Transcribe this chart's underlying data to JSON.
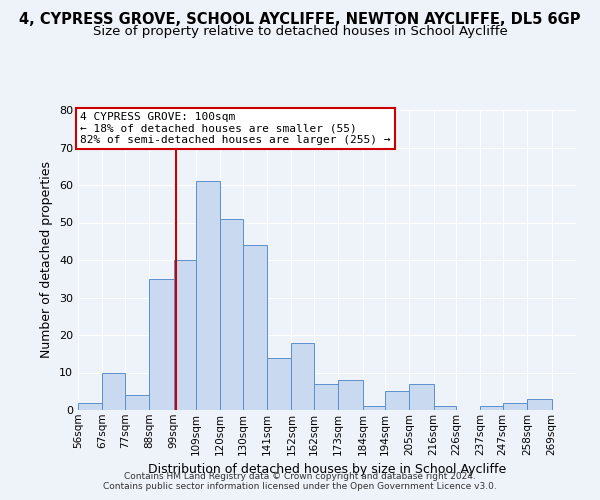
{
  "title": "4, CYPRESS GROVE, SCHOOL AYCLIFFE, NEWTON AYCLIFFE, DL5 6GP",
  "subtitle": "Size of property relative to detached houses in School Aycliffe",
  "xlabel": "Distribution of detached houses by size in School Aycliffe",
  "ylabel": "Number of detached properties",
  "bin_labels": [
    "56sqm",
    "67sqm",
    "77sqm",
    "88sqm",
    "99sqm",
    "109sqm",
    "120sqm",
    "130sqm",
    "141sqm",
    "152sqm",
    "162sqm",
    "173sqm",
    "184sqm",
    "194sqm",
    "205sqm",
    "216sqm",
    "226sqm",
    "237sqm",
    "247sqm",
    "258sqm",
    "269sqm"
  ],
  "bin_edges": [
    56,
    67,
    77,
    88,
    99,
    109,
    120,
    130,
    141,
    152,
    162,
    173,
    184,
    194,
    205,
    216,
    226,
    237,
    247,
    258,
    269
  ],
  "counts": [
    2,
    10,
    4,
    35,
    40,
    61,
    51,
    44,
    14,
    18,
    7,
    8,
    1,
    5,
    7,
    1,
    0,
    1,
    2,
    3
  ],
  "bar_color": "#c9d9f0",
  "bar_edge_color": "#5b8fcc",
  "vline_x": 100,
  "vline_color": "#cc0000",
  "annotation_title": "4 CYPRESS GROVE: 100sqm",
  "annotation_line1": "← 18% of detached houses are smaller (55)",
  "annotation_line2": "82% of semi-detached houses are larger (255) →",
  "annotation_box_color": "#ffffff",
  "annotation_box_edge": "#cc0000",
  "ylim": [
    0,
    80
  ],
  "yticks": [
    0,
    10,
    20,
    30,
    40,
    50,
    60,
    70,
    80
  ],
  "footer1": "Contains HM Land Registry data © Crown copyright and database right 2024.",
  "footer2": "Contains public sector information licensed under the Open Government Licence v3.0.",
  "bg_color": "#eef2f9",
  "title_fontsize": 10.5,
  "subtitle_fontsize": 9.5
}
